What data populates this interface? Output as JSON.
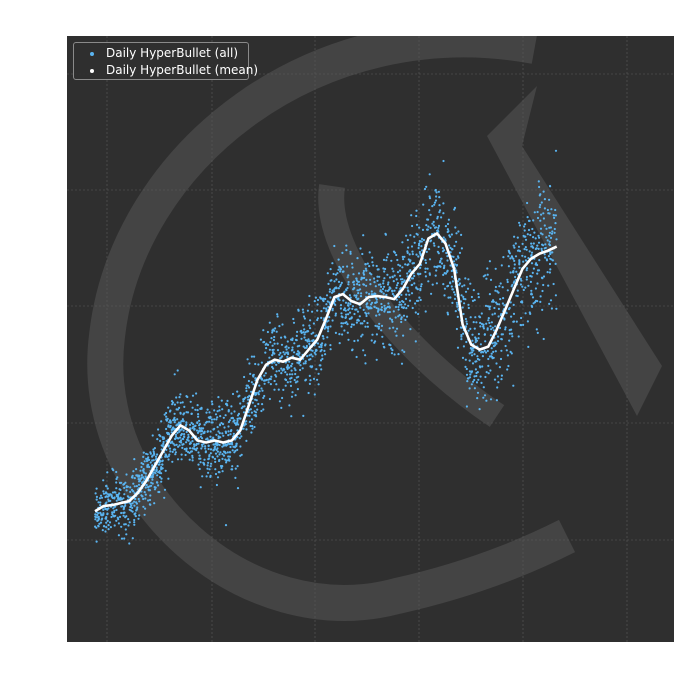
{
  "chart_data": {
    "type": "scatter",
    "title": "",
    "xlabel": "",
    "ylabel": "",
    "grid": true,
    "legend_position": "top-left",
    "xlim": [
      0,
      1420
    ],
    "ylim": [
      0,
      600
    ],
    "series": [
      {
        "name": "Daily HyperBullet (all)",
        "color": "#5ab4f0",
        "marker": "dot",
        "values_mean_curve": [
          [
            0,
            80
          ],
          [
            20,
            85
          ],
          [
            40,
            86
          ],
          [
            60,
            88
          ],
          [
            80,
            90
          ],
          [
            100,
            98
          ],
          [
            120,
            110
          ],
          [
            140,
            125
          ],
          [
            160,
            140
          ],
          [
            180,
            155
          ],
          [
            200,
            165
          ],
          [
            220,
            160
          ],
          [
            240,
            150
          ],
          [
            260,
            148
          ],
          [
            280,
            150
          ],
          [
            300,
            148
          ],
          [
            320,
            150
          ],
          [
            340,
            160
          ],
          [
            360,
            185
          ],
          [
            380,
            210
          ],
          [
            400,
            225
          ],
          [
            420,
            230
          ],
          [
            440,
            228
          ],
          [
            460,
            232
          ],
          [
            480,
            230
          ],
          [
            500,
            240
          ],
          [
            520,
            250
          ],
          [
            540,
            270
          ],
          [
            560,
            292
          ],
          [
            580,
            295
          ],
          [
            600,
            288
          ],
          [
            620,
            285
          ],
          [
            640,
            292
          ],
          [
            660,
            293
          ],
          [
            680,
            292
          ],
          [
            700,
            290
          ],
          [
            720,
            300
          ],
          [
            740,
            315
          ],
          [
            760,
            325
          ],
          [
            780,
            350
          ],
          [
            800,
            355
          ],
          [
            820,
            345
          ],
          [
            840,
            320
          ],
          [
            860,
            265
          ],
          [
            880,
            245
          ],
          [
            900,
            240
          ],
          [
            920,
            243
          ],
          [
            940,
            260
          ],
          [
            960,
            280
          ],
          [
            980,
            300
          ],
          [
            1000,
            320
          ],
          [
            1020,
            330
          ],
          [
            1040,
            335
          ],
          [
            1060,
            338
          ],
          [
            1080,
            342
          ]
        ],
        "spread": 40
      },
      {
        "name": "Daily HyperBullet (mean)",
        "color": "#ffffff",
        "marker": "line",
        "points": [
          [
            0,
            80
          ],
          [
            20,
            85
          ],
          [
            40,
            86
          ],
          [
            60,
            88
          ],
          [
            80,
            90
          ],
          [
            100,
            98
          ],
          [
            120,
            110
          ],
          [
            140,
            125
          ],
          [
            160,
            140
          ],
          [
            180,
            155
          ],
          [
            200,
            165
          ],
          [
            220,
            160
          ],
          [
            240,
            150
          ],
          [
            260,
            148
          ],
          [
            280,
            150
          ],
          [
            300,
            148
          ],
          [
            320,
            150
          ],
          [
            340,
            160
          ],
          [
            360,
            185
          ],
          [
            380,
            210
          ],
          [
            400,
            225
          ],
          [
            420,
            230
          ],
          [
            440,
            228
          ],
          [
            460,
            232
          ],
          [
            480,
            230
          ],
          [
            500,
            240
          ],
          [
            520,
            250
          ],
          [
            540,
            270
          ],
          [
            560,
            292
          ],
          [
            580,
            295
          ],
          [
            600,
            288
          ],
          [
            620,
            285
          ],
          [
            640,
            292
          ],
          [
            660,
            293
          ],
          [
            680,
            292
          ],
          [
            700,
            290
          ],
          [
            720,
            300
          ],
          [
            740,
            315
          ],
          [
            760,
            325
          ],
          [
            780,
            350
          ],
          [
            800,
            355
          ],
          [
            820,
            345
          ],
          [
            840,
            320
          ],
          [
            860,
            265
          ],
          [
            880,
            245
          ],
          [
            900,
            240
          ],
          [
            920,
            243
          ],
          [
            940,
            260
          ],
          [
            960,
            280
          ],
          [
            980,
            300
          ],
          [
            1000,
            320
          ],
          [
            1020,
            330
          ],
          [
            1040,
            335
          ],
          [
            1060,
            338
          ],
          [
            1080,
            342
          ]
        ]
      }
    ]
  }
}
